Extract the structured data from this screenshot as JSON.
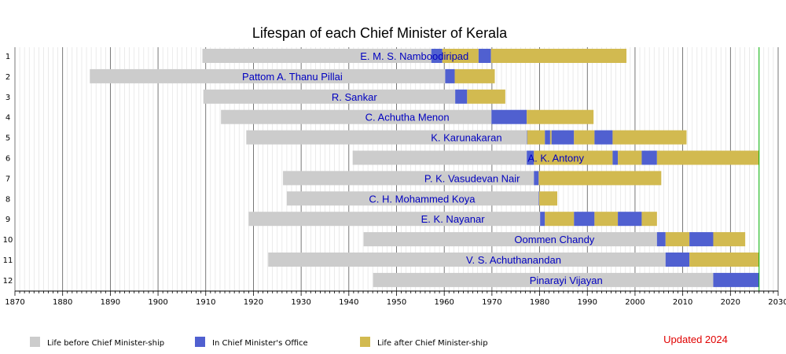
{
  "chart_data": {
    "type": "bar",
    "orientation": "horizontal-timeline",
    "title": "Lifespan of each Chief Minister of Kerala",
    "xlim": [
      1870,
      2030
    ],
    "x_ticks": [
      "1870",
      "1880",
      "1890",
      "1900",
      "1910",
      "1920",
      "1930",
      "1940",
      "1950",
      "1960",
      "1970",
      "1980",
      "1990",
      "2000",
      "2010",
      "2020",
      "2030"
    ],
    "current_year_marker": 2026,
    "legend": [
      {
        "key": "before",
        "label": "Life before Chief Minister-ship",
        "color": "#cccccc"
      },
      {
        "key": "office",
        "label": "In Chief Minister's Office",
        "color": "#5060d0"
      },
      {
        "key": "after",
        "label": "Life after Chief Minister-ship",
        "color": "#d2ba50"
      }
    ],
    "note": "Updated 2024",
    "rows": [
      {
        "num": "1",
        "name": "E. M. S. Namboodiripad",
        "segments": [
          [
            1909.3,
            1957.3,
            "before"
          ],
          [
            1957.3,
            1959.6,
            "office"
          ],
          [
            1959.6,
            1967.2,
            "after"
          ],
          [
            1967.2,
            1969.8,
            "office"
          ],
          [
            1969.8,
            1998.2,
            "after"
          ]
        ]
      },
      {
        "num": "2",
        "name": "Pattom A. Thanu Pillai",
        "segments": [
          [
            1885.7,
            1960.2,
            "before"
          ],
          [
            1960.2,
            1962.2,
            "office"
          ],
          [
            1962.2,
            1970.6,
            "after"
          ]
        ]
      },
      {
        "num": "3",
        "name": "R. Sankar",
        "segments": [
          [
            1909.5,
            1962.3,
            "before"
          ],
          [
            1962.3,
            1964.8,
            "office"
          ],
          [
            1964.8,
            1972.8,
            "after"
          ]
        ]
      },
      {
        "num": "4",
        "name": "C. Achutha Menon",
        "segments": [
          [
            1913.2,
            1969.9,
            "before"
          ],
          [
            1969.9,
            1977.3,
            "office"
          ],
          [
            1977.3,
            1991.3,
            "after"
          ]
        ]
      },
      {
        "num": "5",
        "name": "K. Karunakaran",
        "segments": [
          [
            1918.5,
            1977.3,
            "before"
          ],
          [
            1977.3,
            1977.4,
            "office"
          ],
          [
            1977.4,
            1981.1,
            "after"
          ],
          [
            1981.1,
            1982.2,
            "office"
          ],
          [
            1982.2,
            1982.5,
            "after"
          ],
          [
            1982.5,
            1987.2,
            "office"
          ],
          [
            1987.2,
            1991.5,
            "after"
          ],
          [
            1991.5,
            1995.3,
            "office"
          ],
          [
            1995.3,
            2010.8,
            "after"
          ]
        ]
      },
      {
        "num": "6",
        "name": "A. K. Antony",
        "segments": [
          [
            1940.8,
            1977.3,
            "before"
          ],
          [
            1977.3,
            1978.8,
            "office"
          ],
          [
            1978.8,
            1995.3,
            "after"
          ],
          [
            1995.3,
            1996.4,
            "office"
          ],
          [
            1996.4,
            2001.4,
            "after"
          ],
          [
            2001.4,
            2004.6,
            "office"
          ],
          [
            2004.6,
            2026.0,
            "after"
          ]
        ]
      },
      {
        "num": "7",
        "name": "P. K. Vasudevan Nair",
        "segments": [
          [
            1926.2,
            1978.8,
            "before"
          ],
          [
            1978.8,
            1979.8,
            "office"
          ],
          [
            1979.8,
            2005.5,
            "after"
          ]
        ]
      },
      {
        "num": "8",
        "name": "C. H. Mohammed Koya",
        "segments": [
          [
            1927.0,
            1979.8,
            "before"
          ],
          [
            1979.8,
            1979.9,
            "office"
          ],
          [
            1979.9,
            1983.7,
            "after"
          ]
        ]
      },
      {
        "num": "9",
        "name": "E. K. Nayanar",
        "segments": [
          [
            1919.0,
            1980.1,
            "before"
          ],
          [
            1980.1,
            1981.1,
            "office"
          ],
          [
            1981.1,
            1987.2,
            "after"
          ],
          [
            1987.2,
            1991.5,
            "office"
          ],
          [
            1991.5,
            1996.4,
            "after"
          ],
          [
            1996.4,
            2001.4,
            "office"
          ],
          [
            2001.4,
            2004.6,
            "after"
          ]
        ]
      },
      {
        "num": "10",
        "name": "Oommen Chandy",
        "segments": [
          [
            1943.1,
            2004.6,
            "before"
          ],
          [
            2004.6,
            2006.4,
            "office"
          ],
          [
            2006.4,
            2011.4,
            "after"
          ],
          [
            2011.4,
            2016.4,
            "office"
          ],
          [
            2016.4,
            2023.1,
            "after"
          ]
        ]
      },
      {
        "num": "11",
        "name": "V. S. Achuthanandan",
        "segments": [
          [
            1923.1,
            2006.4,
            "before"
          ],
          [
            2006.4,
            2011.4,
            "office"
          ],
          [
            2011.4,
            2026.0,
            "after"
          ]
        ]
      },
      {
        "num": "12",
        "name": "Pinarayi Vijayan",
        "segments": [
          [
            1945.1,
            2016.4,
            "before"
          ],
          [
            2016.4,
            2026.0,
            "office"
          ]
        ]
      }
    ]
  }
}
